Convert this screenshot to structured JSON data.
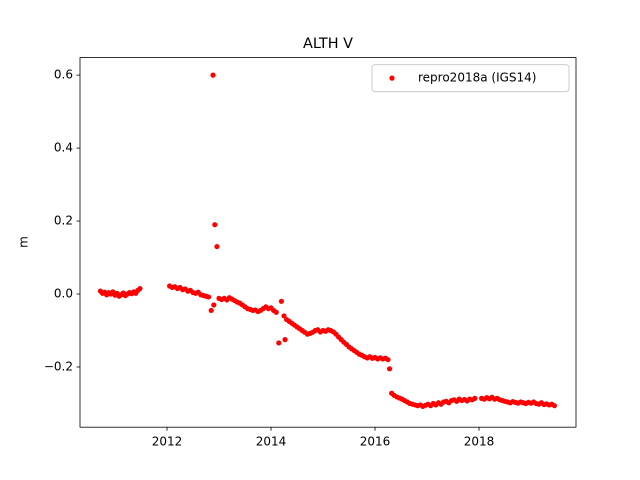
{
  "chart_data": {
    "type": "scatter",
    "title": "ALTH V",
    "y_label": "m",
    "legend": "upper right",
    "xlim": [
      2010.327,
      2019.865
    ],
    "ylim": [
      -0.365,
      0.648
    ],
    "xticks": [
      2012,
      2014,
      2016,
      2018
    ],
    "yticks": [
      {
        "value": -0.2,
        "label": "−0.2"
      },
      {
        "value": 0,
        "label": "0.0"
      },
      0.2,
      0.4,
      0.6
    ],
    "series": [
      {
        "name": "repro2018a (IGS14)",
        "color": "#ff0000",
        "x": [
          2010.72,
          2010.76,
          2010.8,
          2010.84,
          2010.88,
          2010.92,
          2010.96,
          2011.0,
          2011.04,
          2011.08,
          2011.12,
          2011.16,
          2011.2,
          2011.24,
          2011.28,
          2011.32,
          2011.36,
          2011.4,
          2011.44,
          2011.48,
          2012.05,
          2012.1,
          2012.15,
          2012.2,
          2012.25,
          2012.3,
          2012.35,
          2012.4,
          2012.45,
          2012.5,
          2012.55,
          2012.6,
          2012.65,
          2012.7,
          2012.75,
          2012.8,
          2012.85,
          2012.885,
          2012.9,
          2012.92,
          2012.96,
          2013.0,
          2013.05,
          2013.1,
          2013.15,
          2013.2,
          2013.25,
          2013.3,
          2013.35,
          2013.4,
          2013.45,
          2013.5,
          2013.55,
          2013.6,
          2013.65,
          2013.7,
          2013.75,
          2013.8,
          2013.85,
          2013.9,
          2013.95,
          2014.0,
          2014.05,
          2014.1,
          2014.15,
          2014.2,
          2014.25,
          2014.27,
          2014.3,
          2014.35,
          2014.4,
          2014.45,
          2014.5,
          2014.55,
          2014.6,
          2014.65,
          2014.7,
          2014.75,
          2014.8,
          2014.85,
          2014.9,
          2014.95,
          2015.0,
          2015.05,
          2015.1,
          2015.15,
          2015.2,
          2015.25,
          2015.3,
          2015.35,
          2015.4,
          2015.45,
          2015.5,
          2015.55,
          2015.6,
          2015.65,
          2015.7,
          2015.75,
          2015.8,
          2015.85,
          2015.9,
          2015.95,
          2016.0,
          2016.05,
          2016.1,
          2016.15,
          2016.2,
          2016.25,
          2016.28,
          2016.32,
          2016.37,
          2016.42,
          2016.47,
          2016.52,
          2016.57,
          2016.62,
          2016.67,
          2016.72,
          2016.77,
          2016.82,
          2016.87,
          2016.92,
          2016.97,
          2017.02,
          2017.07,
          2017.12,
          2017.17,
          2017.22,
          2017.27,
          2017.32,
          2017.37,
          2017.42,
          2017.47,
          2017.52,
          2017.57,
          2017.62,
          2017.67,
          2017.72,
          2017.77,
          2017.82,
          2017.87,
          2017.92,
          2018.05,
          2018.1,
          2018.15,
          2018.2,
          2018.25,
          2018.3,
          2018.35,
          2018.4,
          2018.45,
          2018.5,
          2018.55,
          2018.6,
          2018.65,
          2018.7,
          2018.75,
          2018.8,
          2018.85,
          2018.9,
          2018.95,
          2019.0,
          2019.05,
          2019.1,
          2019.15,
          2019.2,
          2019.25,
          2019.3,
          2019.35,
          2019.4,
          2019.45
        ],
        "values": [
          0.008,
          0.002,
          0.005,
          -0.002,
          0.004,
          0.0,
          0.006,
          -0.003,
          0.002,
          -0.006,
          -0.002,
          0.003,
          -0.004,
          0.0,
          0.004,
          0.001,
          0.006,
          0.002,
          0.01,
          0.015,
          0.022,
          0.018,
          0.02,
          0.015,
          0.018,
          0.012,
          0.014,
          0.008,
          0.01,
          0.004,
          0.002,
          0.005,
          -0.002,
          -0.004,
          -0.006,
          -0.008,
          -0.045,
          0.6,
          -0.03,
          0.19,
          0.13,
          -0.012,
          -0.015,
          -0.012,
          -0.016,
          -0.01,
          -0.014,
          -0.018,
          -0.022,
          -0.025,
          -0.03,
          -0.035,
          -0.04,
          -0.042,
          -0.045,
          -0.044,
          -0.048,
          -0.045,
          -0.04,
          -0.035,
          -0.04,
          -0.038,
          -0.045,
          -0.05,
          -0.134,
          -0.02,
          -0.06,
          -0.125,
          -0.07,
          -0.075,
          -0.08,
          -0.085,
          -0.09,
          -0.095,
          -0.1,
          -0.105,
          -0.11,
          -0.108,
          -0.105,
          -0.1,
          -0.098,
          -0.104,
          -0.1,
          -0.102,
          -0.098,
          -0.1,
          -0.104,
          -0.11,
          -0.118,
          -0.125,
          -0.132,
          -0.138,
          -0.145,
          -0.15,
          -0.155,
          -0.16,
          -0.165,
          -0.168,
          -0.172,
          -0.175,
          -0.172,
          -0.176,
          -0.174,
          -0.178,
          -0.175,
          -0.178,
          -0.176,
          -0.18,
          -0.205,
          -0.272,
          -0.278,
          -0.282,
          -0.285,
          -0.288,
          -0.292,
          -0.296,
          -0.3,
          -0.302,
          -0.304,
          -0.306,
          -0.304,
          -0.308,
          -0.305,
          -0.302,
          -0.306,
          -0.3,
          -0.304,
          -0.298,
          -0.302,
          -0.296,
          -0.294,
          -0.298,
          -0.292,
          -0.29,
          -0.294,
          -0.288,
          -0.292,
          -0.289,
          -0.293,
          -0.288,
          -0.29,
          -0.286,
          -0.286,
          -0.288,
          -0.284,
          -0.287,
          -0.283,
          -0.288,
          -0.286,
          -0.29,
          -0.292,
          -0.294,
          -0.296,
          -0.298,
          -0.295,
          -0.297,
          -0.299,
          -0.296,
          -0.298,
          -0.3,
          -0.297,
          -0.299,
          -0.296,
          -0.3,
          -0.302,
          -0.298,
          -0.303,
          -0.301,
          -0.304,
          -0.302,
          -0.306
        ]
      }
    ]
  }
}
